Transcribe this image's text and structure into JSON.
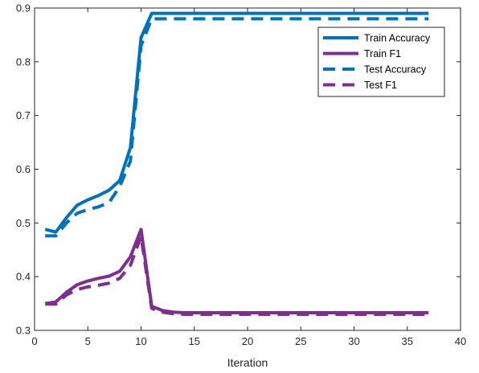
{
  "chart_data": {
    "type": "line",
    "xlabel": "Iteration",
    "ylabel": "",
    "xlim": [
      0,
      40
    ],
    "ylim": [
      0.3,
      0.9
    ],
    "xticks": [
      0,
      5,
      10,
      15,
      20,
      25,
      30,
      35,
      40
    ],
    "yticks": [
      0.3,
      0.4,
      0.5,
      0.6,
      0.7,
      0.8,
      0.9
    ],
    "grid": false,
    "legend_position": "top-right",
    "x": [
      1,
      2,
      3,
      4,
      5,
      6,
      7,
      8,
      9,
      10,
      11,
      12,
      13,
      14,
      15,
      16,
      17,
      18,
      19,
      20,
      21,
      22,
      23,
      24,
      25,
      26,
      27,
      28,
      29,
      30,
      31,
      32,
      33,
      34,
      35,
      36,
      37
    ],
    "series": [
      {
        "name": "Train Accuracy",
        "color": "#0072bd",
        "dash": "solid",
        "values": [
          0.488,
          0.483,
          0.51,
          0.533,
          0.543,
          0.551,
          0.561,
          0.579,
          0.64,
          0.845,
          0.89,
          0.89,
          0.89,
          0.89,
          0.89,
          0.89,
          0.89,
          0.89,
          0.89,
          0.89,
          0.89,
          0.89,
          0.89,
          0.89,
          0.89,
          0.89,
          0.89,
          0.89,
          0.89,
          0.89,
          0.89,
          0.89,
          0.89,
          0.89,
          0.89,
          0.89,
          0.89
        ]
      },
      {
        "name": "Train F1",
        "color": "#7e2f8e",
        "dash": "solid",
        "values": [
          0.35,
          0.353,
          0.371,
          0.385,
          0.392,
          0.397,
          0.401,
          0.41,
          0.437,
          0.488,
          0.345,
          0.337,
          0.334,
          0.333,
          0.333,
          0.333,
          0.333,
          0.333,
          0.333,
          0.333,
          0.333,
          0.333,
          0.333,
          0.333,
          0.333,
          0.333,
          0.333,
          0.333,
          0.333,
          0.333,
          0.333,
          0.333,
          0.333,
          0.333,
          0.333,
          0.333,
          0.333
        ]
      },
      {
        "name": "Test Accuracy",
        "color": "#0072bd",
        "dash": "dashed",
        "values": [
          0.476,
          0.476,
          0.5,
          0.518,
          0.525,
          0.53,
          0.538,
          0.568,
          0.615,
          0.83,
          0.88,
          0.88,
          0.88,
          0.88,
          0.88,
          0.88,
          0.88,
          0.88,
          0.88,
          0.88,
          0.88,
          0.88,
          0.88,
          0.88,
          0.88,
          0.88,
          0.88,
          0.88,
          0.88,
          0.88,
          0.88,
          0.88,
          0.88,
          0.88,
          0.88,
          0.88,
          0.88
        ]
      },
      {
        "name": "Test F1",
        "color": "#7e2f8e",
        "dash": "dashed",
        "values": [
          0.349,
          0.349,
          0.366,
          0.376,
          0.381,
          0.384,
          0.388,
          0.397,
          0.421,
          0.475,
          0.341,
          0.334,
          0.331,
          0.33,
          0.33,
          0.33,
          0.33,
          0.33,
          0.33,
          0.33,
          0.33,
          0.33,
          0.33,
          0.33,
          0.33,
          0.33,
          0.33,
          0.33,
          0.33,
          0.33,
          0.33,
          0.33,
          0.33,
          0.33,
          0.33,
          0.33,
          0.33
        ]
      }
    ]
  }
}
